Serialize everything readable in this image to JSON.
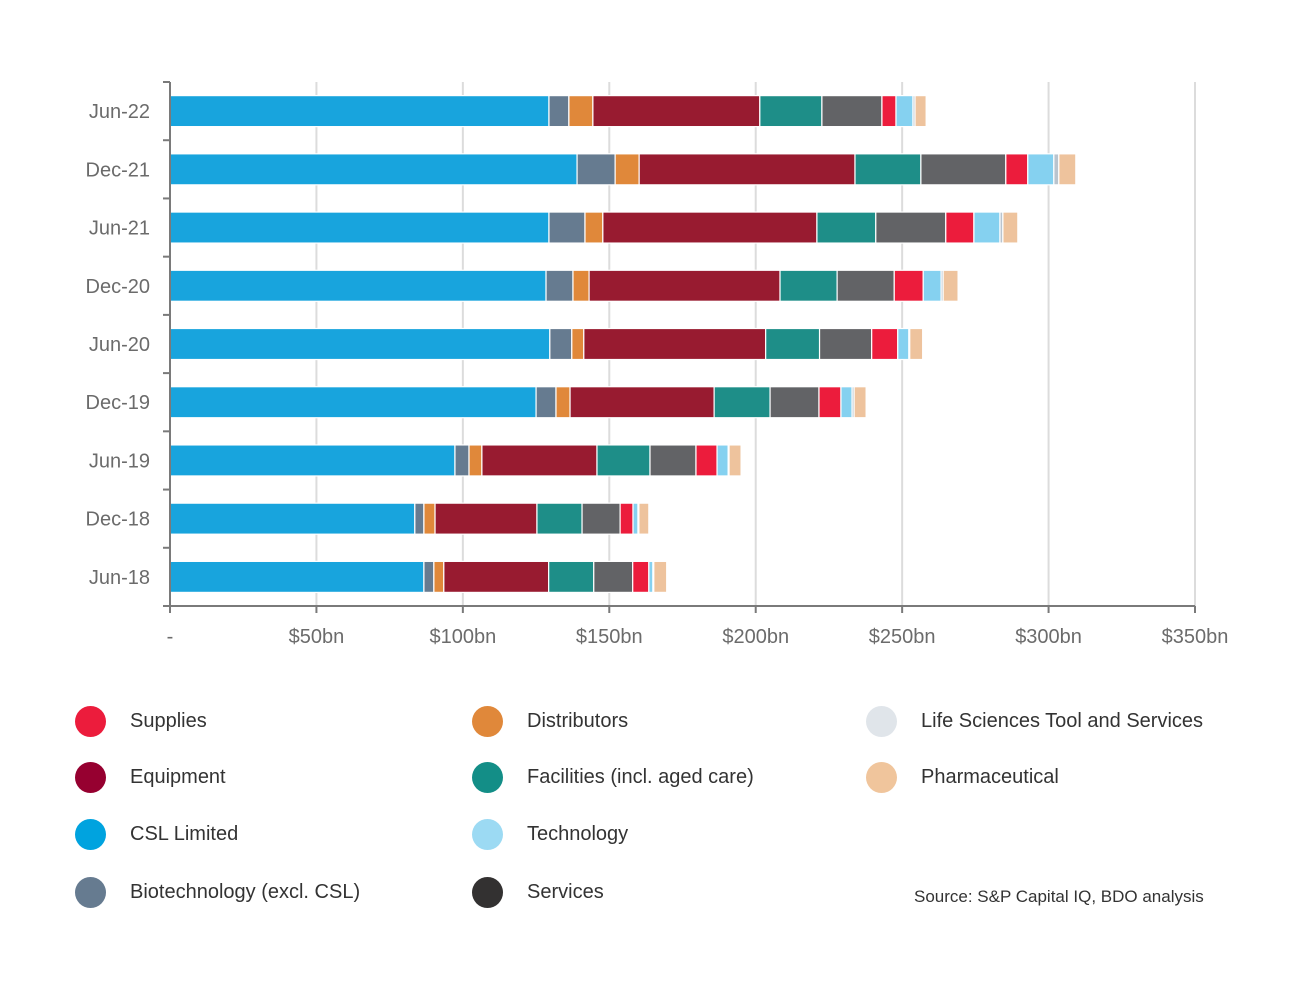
{
  "chart_data": {
    "type": "bar",
    "orientation": "horizontal",
    "stacked": true,
    "title": "",
    "xlabel": "",
    "ylabel": "",
    "xlim": [
      0,
      350
    ],
    "grid": true,
    "legend_position": "bottom",
    "x_ticks": [
      {
        "value": 0,
        "label": "-"
      },
      {
        "value": 50,
        "label": "$50bn"
      },
      {
        "value": 100,
        "label": "$100bn"
      },
      {
        "value": 150,
        "label": "$150bn"
      },
      {
        "value": 200,
        "label": "$200bn"
      },
      {
        "value": 250,
        "label": "$250bn"
      },
      {
        "value": 300,
        "label": "$300bn"
      },
      {
        "value": 350,
        "label": "$350bn"
      }
    ],
    "categories": [
      "Jun-22",
      "Dec-21",
      "Jun-21",
      "Dec-20",
      "Jun-20",
      "Dec-19",
      "Jun-19",
      "Dec-18",
      "Jun-18"
    ],
    "series": [
      {
        "name": "CSL Limited",
        "color": "#18A4DD",
        "values": [
          129.4,
          139.0,
          129.4,
          128.4,
          129.7,
          125.0,
          97.3,
          83.6,
          86.7
        ]
      },
      {
        "name": "Biotechnology (excl. CSL)",
        "color": "#667B90",
        "values": [
          6.8,
          13.0,
          12.3,
          9.2,
          7.5,
          6.8,
          4.8,
          3.1,
          3.4
        ]
      },
      {
        "name": "Distributors",
        "color": "#E0883A",
        "values": [
          8.2,
          8.2,
          6.1,
          5.5,
          4.1,
          4.8,
          4.4,
          3.8,
          3.4
        ]
      },
      {
        "name": "Equipment",
        "color": "#981B30",
        "values": [
          57.0,
          73.7,
          73.1,
          65.2,
          62.1,
          49.2,
          39.3,
          34.8,
          35.8
        ]
      },
      {
        "name": "Facilities (incl. aged care)",
        "color": "#1E8E88",
        "values": [
          21.2,
          22.5,
          20.1,
          19.5,
          18.4,
          19.1,
          18.1,
          15.4,
          15.4
        ]
      },
      {
        "name": "Services",
        "color": "#626366",
        "values": [
          20.5,
          29.0,
          23.9,
          19.5,
          17.8,
          16.7,
          15.7,
          13.0,
          13.3
        ]
      },
      {
        "name": "Supplies",
        "color": "#EC1C3C",
        "values": [
          4.8,
          7.5,
          9.6,
          9.9,
          8.9,
          7.5,
          7.2,
          4.4,
          5.5
        ]
      },
      {
        "name": "Technology",
        "color": "#85D1F0",
        "values": [
          5.8,
          8.9,
          8.9,
          6.1,
          3.8,
          3.8,
          3.8,
          1.7,
          1.4
        ]
      },
      {
        "name": "Life Sciences Tool and Services",
        "color": "#B9C4CE",
        "values": [
          0.7,
          1.7,
          1.0,
          0.7,
          0.3,
          0.7,
          0.3,
          0.3,
          0.3
        ]
      },
      {
        "name": "Pharmaceutical",
        "color": "#EEC39D",
        "values": [
          3.8,
          5.8,
          5.1,
          5.1,
          4.4,
          4.1,
          4.1,
          3.4,
          4.4
        ]
      }
    ]
  },
  "legend": {
    "columns": [
      [
        {
          "label": "Supplies",
          "color": "#EC1C3C"
        },
        {
          "label": "Equipment",
          "color": "#960030"
        },
        {
          "label": "CSL Limited",
          "color": "#00A3DF"
        },
        {
          "label": "Biotechnology (excl. CSL)",
          "color": "#667B90"
        }
      ],
      [
        {
          "label": "Distributors",
          "color": "#E0883A"
        },
        {
          "label": "Facilities (incl. aged care)",
          "color": "#138E87"
        },
        {
          "label": "Technology",
          "color": "#9CDAF3"
        },
        {
          "label": "Services",
          "color": "#333131"
        }
      ],
      [
        {
          "label": "Life Sciences Tool and Services",
          "color": "#E0E5EA"
        },
        {
          "label": "Pharmaceutical",
          "color": "#F0C59C"
        }
      ]
    ]
  },
  "source": "Source: S&P Capital IQ, BDO analysis",
  "colors": {
    "axis": "#7a7a7a",
    "grid": "#dcdcdc",
    "tick_text": "#6b6b6b",
    "legend_text": "#333333"
  }
}
